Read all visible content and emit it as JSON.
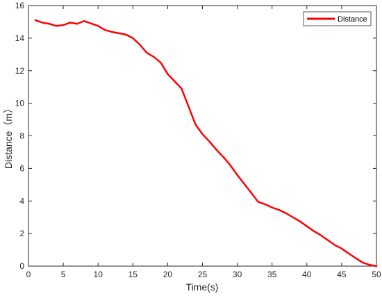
{
  "chart_data": {
    "type": "line",
    "title": "",
    "xlabel": "Time(s)",
    "ylabel": "Distance（m）",
    "xlim": [
      0,
      50
    ],
    "ylim": [
      0,
      16
    ],
    "xticks": [
      0,
      5,
      10,
      15,
      20,
      25,
      30,
      35,
      40,
      45,
      50
    ],
    "yticks": [
      0,
      2,
      4,
      6,
      8,
      10,
      12,
      14,
      16
    ],
    "grid": false,
    "legend_position": "top-right",
    "series": [
      {
        "name": "Distance",
        "color": "#ff0000",
        "x": [
          1,
          2,
          3,
          4,
          5,
          6,
          7,
          8,
          9,
          10,
          11,
          12,
          13,
          14,
          15,
          16,
          17,
          18,
          19,
          20,
          21,
          22,
          23,
          24,
          25,
          26,
          27,
          28,
          29,
          30,
          31,
          32,
          33,
          34,
          35,
          36,
          37,
          38,
          39,
          40,
          41,
          42,
          43,
          44,
          45,
          46,
          47,
          48,
          49,
          50
        ],
        "y": [
          15.1,
          14.95,
          14.88,
          14.75,
          14.8,
          14.95,
          14.88,
          15.05,
          14.9,
          14.75,
          14.5,
          14.38,
          14.3,
          14.22,
          14.0,
          13.6,
          13.1,
          12.85,
          12.5,
          11.8,
          11.35,
          10.9,
          9.8,
          8.7,
          8.1,
          7.65,
          7.15,
          6.7,
          6.2,
          5.6,
          5.05,
          4.5,
          3.95,
          3.8,
          3.6,
          3.45,
          3.25,
          3.0,
          2.75,
          2.45,
          2.15,
          1.9,
          1.6,
          1.3,
          1.08,
          0.78,
          0.5,
          0.22,
          0.08,
          0.0
        ]
      }
    ]
  }
}
